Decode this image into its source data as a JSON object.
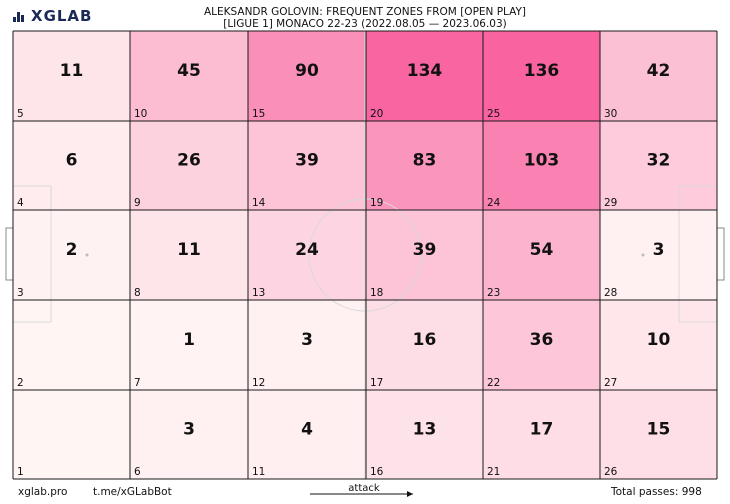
{
  "header": {
    "logo_text": "XGLAB",
    "title_line1": "ALEKSANDR GOLOVIN: FREQUENT ZONES FROM [OPEN PLAY]",
    "title_line2": "[LIGUE 1] MONACO 22-23 (2022.08.05 — 2023.06.03)"
  },
  "footer": {
    "site": "xglab.pro",
    "bot": "t.me/xGLabBot",
    "attack_label": "attack",
    "total_passes": "Total passes: 998"
  },
  "colors": {
    "low": "#fff6f4",
    "high": "#f863a0",
    "grid": "#1a1a1a",
    "pitch_lines": "#d9d9d9"
  },
  "chart_data": {
    "type": "heatmap",
    "title": "ALEKSANDR GOLOVIN: FREQUENT ZONES FROM [OPEN PLAY]",
    "subtitle": "[LIGUE 1] MONACO 22-23 (2022.08.05 — 2023.06.03)",
    "columns": 6,
    "rows": 5,
    "zones": [
      {
        "zone": 1,
        "value": null
      },
      {
        "zone": 2,
        "value": null
      },
      {
        "zone": 3,
        "value": 2
      },
      {
        "zone": 4,
        "value": 6
      },
      {
        "zone": 5,
        "value": 11
      },
      {
        "zone": 6,
        "value": 3
      },
      {
        "zone": 7,
        "value": 1
      },
      {
        "zone": 8,
        "value": 11
      },
      {
        "zone": 9,
        "value": 26
      },
      {
        "zone": 10,
        "value": 45
      },
      {
        "zone": 11,
        "value": 4
      },
      {
        "zone": 12,
        "value": 3
      },
      {
        "zone": 13,
        "value": 24
      },
      {
        "zone": 14,
        "value": 39
      },
      {
        "zone": 15,
        "value": 90
      },
      {
        "zone": 16,
        "value": 13
      },
      {
        "zone": 17,
        "value": 16
      },
      {
        "zone": 18,
        "value": 39
      },
      {
        "zone": 19,
        "value": 83
      },
      {
        "zone": 20,
        "value": 134
      },
      {
        "zone": 21,
        "value": 17
      },
      {
        "zone": 22,
        "value": 36
      },
      {
        "zone": 23,
        "value": 54
      },
      {
        "zone": 24,
        "value": 103
      },
      {
        "zone": 25,
        "value": 136
      },
      {
        "zone": 26,
        "value": 15
      },
      {
        "zone": 27,
        "value": 10
      },
      {
        "zone": 28,
        "value": 3
      },
      {
        "zone": 29,
        "value": 32
      },
      {
        "zone": 30,
        "value": 42
      }
    ],
    "total_passes": 998,
    "attack_direction": "right"
  }
}
